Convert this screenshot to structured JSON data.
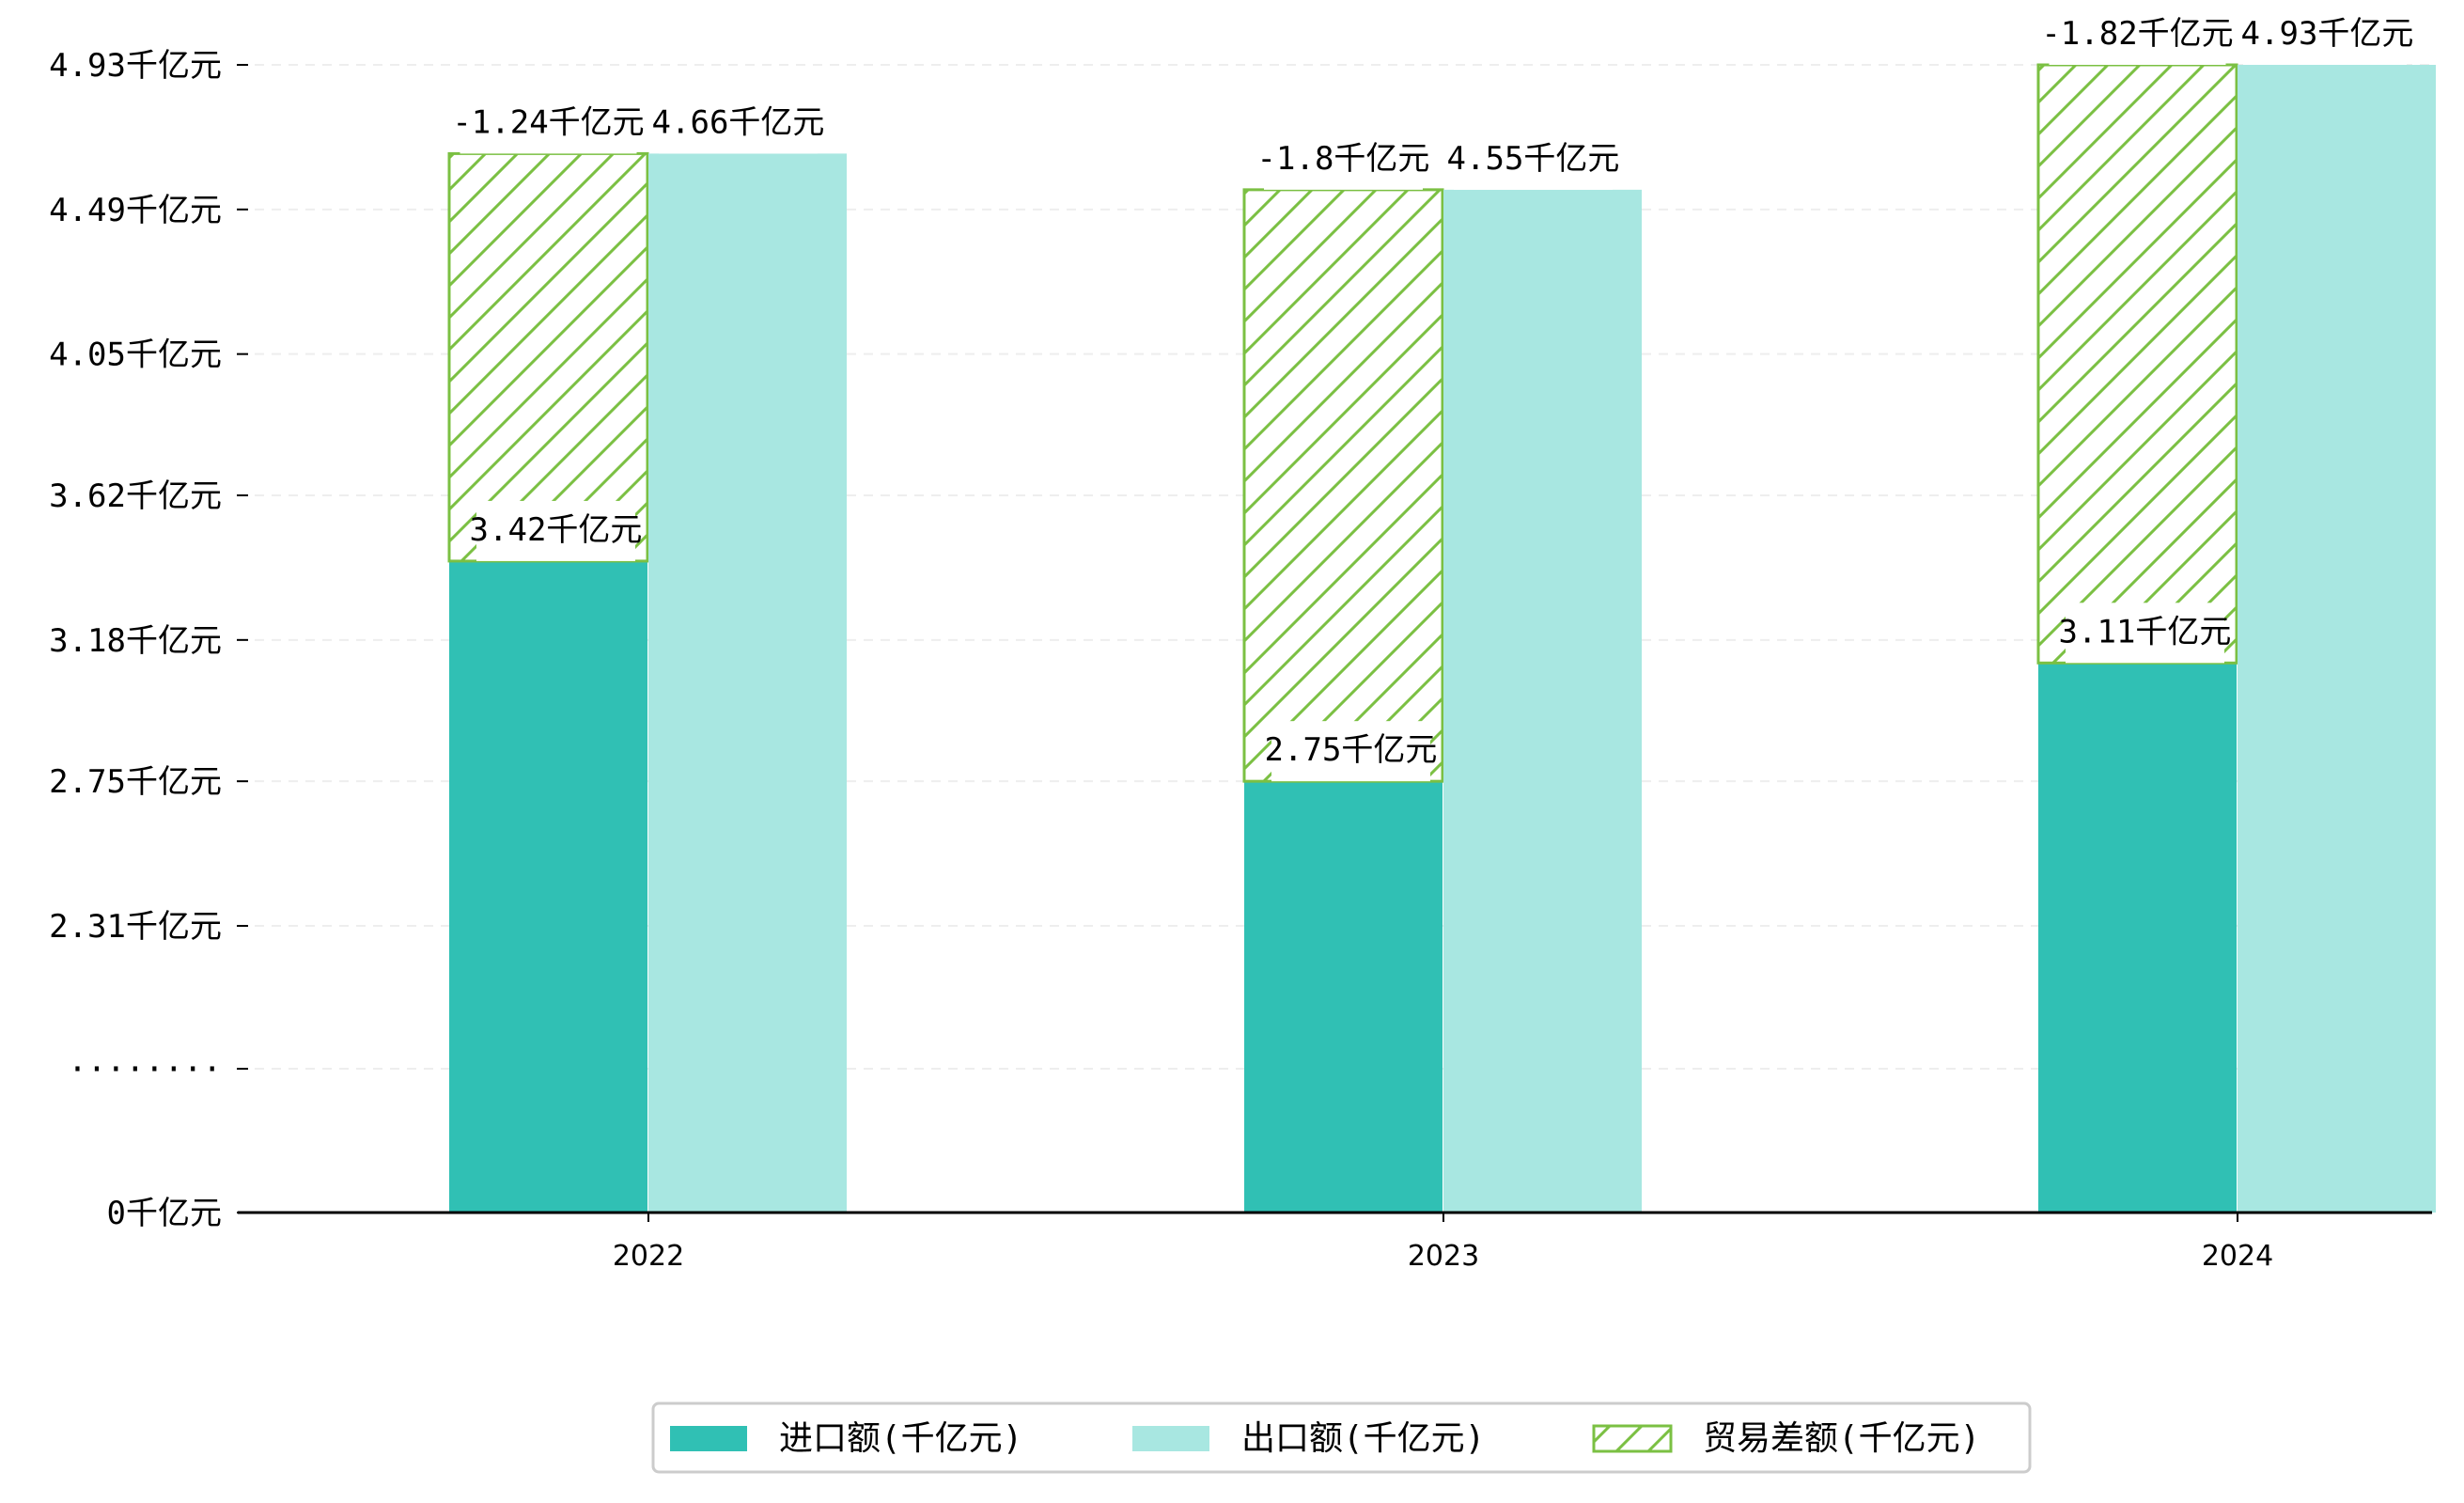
{
  "colors": {
    "import": "#30c0b4",
    "export": "#a8e7e1",
    "balance": "#7bc043",
    "grid": "#eeeeee",
    "axis": "#000000"
  },
  "chart_data": {
    "type": "bar",
    "categories": [
      "2022",
      "2023",
      "2024"
    ],
    "series": [
      {
        "name": "进口额(千亿元)",
        "values": [
          3.42,
          2.75,
          3.11
        ],
        "labels": [
          "3.42千亿元",
          "2.75千亿元",
          "3.11千亿元"
        ]
      },
      {
        "name": "出口额(千亿元)",
        "values": [
          4.66,
          4.55,
          4.93
        ],
        "labels": [
          "4.66千亿元",
          "4.55千亿元",
          "4.93千亿元"
        ]
      },
      {
        "name": "贸易差额(千亿元)",
        "values": [
          -1.24,
          -1.8,
          -1.82
        ],
        "labels": [
          "-1.24千亿元",
          "-1.8千亿元",
          "-1.82千亿元"
        ],
        "stacked_on": "进口额(千亿元)"
      }
    ],
    "y_ticks": [
      {
        "value": 0,
        "label": "0千亿元"
      },
      {
        "value": 1.87,
        "label": "········"
      },
      {
        "value": 2.31,
        "label": "2.31千亿元"
      },
      {
        "value": 2.75,
        "label": "2.75千亿元"
      },
      {
        "value": 3.18,
        "label": "3.18千亿元"
      },
      {
        "value": 3.62,
        "label": "3.62千亿元"
      },
      {
        "value": 4.05,
        "label": "4.05千亿元"
      },
      {
        "value": 4.49,
        "label": "4.49千亿元"
      },
      {
        "value": 4.93,
        "label": "4.93千亿元"
      }
    ],
    "y_axis_break": true,
    "grid": true,
    "legend_position": "bottom-center",
    "title": "",
    "xlabel": "",
    "ylabel": ""
  }
}
